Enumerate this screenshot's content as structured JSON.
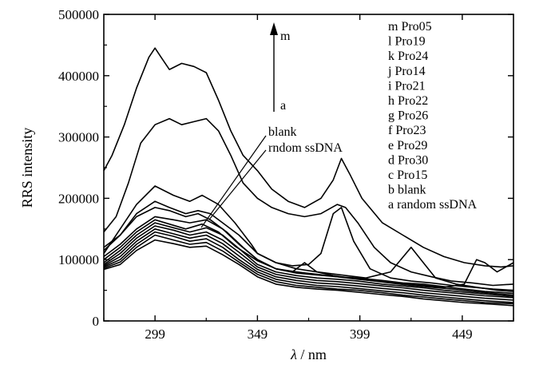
{
  "chart_data": {
    "type": "line",
    "xlabel_symbol": "λ",
    "xlabel_unit": "/ nm",
    "ylabel": "RRS intensity",
    "xlim": [
      274,
      474
    ],
    "ylim": [
      0,
      500000
    ],
    "xticks": [
      299,
      349,
      399,
      449
    ],
    "xtick_labels": [
      "299",
      "349",
      "399",
      "449"
    ],
    "yticks": [
      0,
      100000,
      200000,
      300000,
      400000,
      500000
    ],
    "ytick_labels": [
      "0",
      "100000",
      "200000",
      "300000",
      "400000",
      "500000"
    ],
    "grid": false,
    "legend_position": "top-right",
    "legend": [
      "m Pro05",
      "l Pro19",
      "k Pro24",
      "j Pro14",
      "i Pro21",
      "h Pro22",
      "g Pro26",
      "f Pro23",
      "e Pro29",
      "d Pro30",
      "c Pro15",
      "b blank",
      "a random ssDNA"
    ],
    "arrow_top_label": "m",
    "arrow_bottom_label": "a",
    "annotations": [
      "blank",
      "rndom ssDNA"
    ],
    "series": [
      {
        "x": [
          274,
          278,
          284,
          290,
          296,
          299,
          302,
          306,
          312,
          318,
          324,
          330,
          336,
          342,
          349,
          356,
          364,
          372,
          380,
          386,
          390,
          394,
          400,
          410,
          420,
          430,
          440,
          450,
          460,
          468,
          474
        ],
        "values": [
          245000,
          270000,
          320000,
          380000,
          430000,
          445000,
          430000,
          410000,
          420000,
          415000,
          405000,
          360000,
          310000,
          270000,
          245000,
          215000,
          195000,
          185000,
          200000,
          230000,
          265000,
          240000,
          200000,
          160000,
          140000,
          120000,
          105000,
          95000,
          90000,
          88000,
          90000
        ]
      },
      {
        "x": [
          274,
          280,
          286,
          292,
          299,
          306,
          312,
          318,
          324,
          330,
          336,
          342,
          349,
          356,
          364,
          372,
          380,
          388,
          392,
          398,
          406,
          414,
          424,
          434,
          444,
          454,
          464,
          474
        ],
        "values": [
          145000,
          170000,
          225000,
          290000,
          320000,
          330000,
          320000,
          325000,
          330000,
          310000,
          270000,
          225000,
          200000,
          185000,
          175000,
          170000,
          175000,
          190000,
          185000,
          160000,
          120000,
          95000,
          80000,
          72000,
          65000,
          62000,
          58000,
          60000
        ]
      },
      {
        "x": [
          274,
          282,
          290,
          299,
          306,
          314,
          320,
          326,
          332,
          340,
          349,
          358,
          366,
          374,
          380,
          386,
          390,
          396,
          404,
          414,
          424,
          434,
          444,
          454,
          464,
          474
        ],
        "values": [
          115000,
          140000,
          175000,
          195000,
          185000,
          175000,
          180000,
          175000,
          160000,
          140000,
          110000,
          95000,
          90000,
          92000,
          110000,
          175000,
          185000,
          130000,
          85000,
          70000,
          65000,
          62000,
          58000,
          55000,
          52000,
          50000
        ]
      },
      {
        "x": [
          274,
          282,
          290,
          299,
          308,
          316,
          322,
          330,
          338,
          346,
          349,
          358,
          368,
          378,
          390,
          402,
          414,
          424,
          430,
          436,
          446,
          456,
          466,
          474
        ],
        "values": [
          110000,
          150000,
          190000,
          220000,
          205000,
          195000,
          205000,
          190000,
          160000,
          125000,
          110000,
          95000,
          85000,
          80000,
          75000,
          70000,
          80000,
          120000,
          95000,
          70000,
          60000,
          55000,
          50000,
          48000
        ]
      },
      {
        "x": [
          274,
          282,
          290,
          299,
          306,
          314,
          320,
          326,
          334,
          342,
          349,
          358,
          368,
          378,
          388,
          398,
          410,
          420,
          430,
          440,
          450,
          456,
          460,
          466,
          474
        ],
        "values": [
          120000,
          140000,
          170000,
          185000,
          180000,
          170000,
          175000,
          165000,
          145000,
          120000,
          100000,
          85000,
          78000,
          75000,
          72000,
          68000,
          64000,
          60000,
          58000,
          55000,
          60000,
          100000,
          95000,
          80000,
          95000
        ]
      },
      {
        "x": [
          274,
          282,
          290,
          299,
          308,
          316,
          324,
          332,
          340,
          349,
          358,
          368,
          378,
          388,
          398,
          410,
          420,
          430,
          440,
          450,
          460,
          474
        ],
        "values": [
          105000,
          125000,
          150000,
          170000,
          165000,
          160000,
          165000,
          150000,
          125000,
          100000,
          85000,
          80000,
          76000,
          72000,
          70000,
          66000,
          62000,
          60000,
          56000,
          52000,
          48000,
          45000
        ]
      },
      {
        "x": [
          274,
          282,
          290,
          299,
          306,
          314,
          322,
          330,
          338,
          349,
          358,
          366,
          372,
          378,
          386,
          394,
          404,
          414,
          424,
          434,
          444,
          454,
          464,
          474
        ],
        "values": [
          100000,
          120000,
          145000,
          165000,
          158000,
          150000,
          158000,
          145000,
          122000,
          98000,
          85000,
          80000,
          95000,
          80000,
          74000,
          70000,
          66000,
          62000,
          58000,
          55000,
          52000,
          48000,
          45000,
          42000
        ]
      },
      {
        "x": [
          274,
          282,
          290,
          299,
          308,
          316,
          324,
          332,
          340,
          349,
          358,
          368,
          378,
          388,
          398,
          410,
          420,
          430,
          440,
          450,
          460,
          474
        ],
        "values": [
          95000,
          115000,
          140000,
          160000,
          152000,
          145000,
          152000,
          140000,
          118000,
          92000,
          80000,
          74000,
          70000,
          68000,
          65000,
          60000,
          57000,
          54000,
          50000,
          47000,
          44000,
          40000
        ]
      },
      {
        "x": [
          274,
          282,
          290,
          299,
          308,
          316,
          324,
          332,
          340,
          349,
          358,
          368,
          378,
          388,
          398,
          410,
          420,
          430,
          440,
          450,
          460,
          474
        ],
        "values": [
          92000,
          110000,
          135000,
          155000,
          148000,
          140000,
          145000,
          132000,
          112000,
          88000,
          76000,
          70000,
          66000,
          64000,
          61000,
          57000,
          54000,
          50000,
          47000,
          44000,
          41000,
          38000
        ]
      },
      {
        "x": [
          274,
          282,
          290,
          299,
          308,
          316,
          324,
          332,
          340,
          349,
          358,
          368,
          378,
          388,
          398,
          410,
          420,
          430,
          440,
          450,
          460,
          474
        ],
        "values": [
          90000,
          105000,
          130000,
          150000,
          142000,
          135000,
          140000,
          126000,
          106000,
          84000,
          72000,
          66000,
          62000,
          60000,
          57000,
          53000,
          50000,
          46000,
          43000,
          40000,
          37000,
          34000
        ]
      },
      {
        "x": [
          274,
          282,
          290,
          299,
          308,
          316,
          324,
          332,
          340,
          349,
          358,
          368,
          378,
          388,
          398,
          410,
          420,
          430,
          440,
          450,
          460,
          474
        ],
        "values": [
          88000,
          100000,
          125000,
          145000,
          138000,
          130000,
          134000,
          120000,
          100000,
          80000,
          68000,
          62000,
          58000,
          56000,
          53000,
          49000,
          46000,
          42000,
          39000,
          36000,
          33000,
          30000
        ]
      },
      {
        "x": [
          274,
          282,
          290,
          299,
          308,
          316,
          324,
          332,
          340,
          349,
          358,
          368,
          378,
          388,
          398,
          410,
          420,
          430,
          440,
          450,
          460,
          474
        ],
        "values": [
          86000,
          96000,
          120000,
          140000,
          132000,
          125000,
          128000,
          114000,
          96000,
          76000,
          64000,
          58000,
          55000,
          52000,
          50000,
          46000,
          42000,
          39000,
          36000,
          33000,
          30000,
          28000
        ]
      },
      {
        "x": [
          274,
          282,
          290,
          299,
          308,
          316,
          324,
          332,
          340,
          349,
          358,
          368,
          378,
          388,
          398,
          410,
          420,
          430,
          440,
          450,
          460,
          474
        ],
        "values": [
          84000,
          92000,
          115000,
          132000,
          126000,
          120000,
          122000,
          108000,
          92000,
          72000,
          60000,
          55000,
          52000,
          50000,
          47000,
          43000,
          40000,
          36000,
          33000,
          30000,
          28000,
          25000
        ]
      }
    ]
  }
}
